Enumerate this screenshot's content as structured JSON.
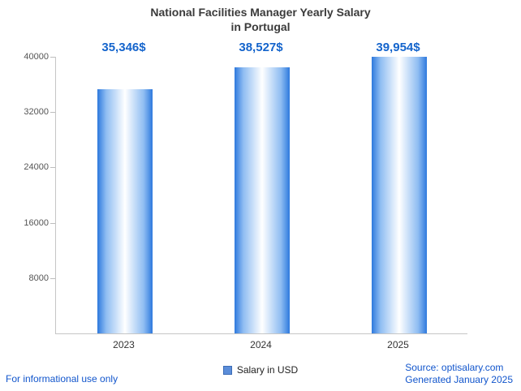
{
  "title": {
    "line1": "National Facilities Manager Yearly Salary",
    "line2": "in Portugal"
  },
  "chart_data": {
    "type": "bar",
    "title": "National Facilities Manager Yearly Salary in Portugal",
    "categories": [
      "2023",
      "2024",
      "2025"
    ],
    "values": [
      35346,
      38527,
      39954
    ],
    "value_labels": [
      "35,346$",
      "38,527$",
      "39,954$"
    ],
    "xlabel": "",
    "ylabel": "",
    "ylim": [
      0,
      40000
    ],
    "yticks": [
      40000,
      32000,
      24000,
      16000,
      8000
    ],
    "ytick_labels": [
      "40000",
      "32000",
      "24000",
      "16000",
      "8000"
    ],
    "grid": false,
    "legend": {
      "label": "Salary in USD",
      "position": "bottom"
    },
    "bar_gradient": [
      "#2e79dd",
      "#ffffff",
      "#2e79dd"
    ],
    "value_label_color": "#1464cc"
  },
  "footer": {
    "disclaimer": "For informational use only",
    "source": "Source: optisalary.com",
    "generated": "Generated January 2025"
  }
}
